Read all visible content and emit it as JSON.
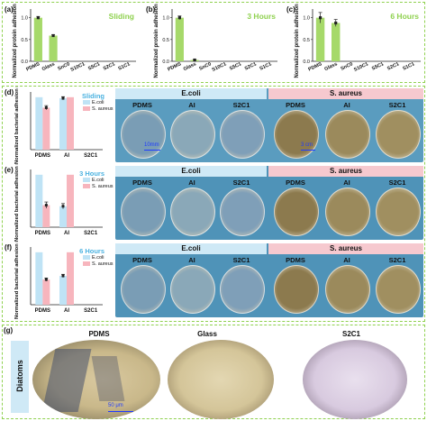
{
  "panels": {
    "a": "(a)",
    "b": "(b)",
    "c": "(c)",
    "d": "(d)",
    "e": "(e)",
    "f": "(f)",
    "g": "(g)"
  },
  "colors": {
    "protein_bar": "#a6d96a",
    "ecoli_bar": "#bfe3f5",
    "saureus_bar": "#f7b5bd",
    "title_green": "#8fd14f",
    "title_blue": "#4bb2e0",
    "ecoli_header": "#cfe9f6",
    "saureus_header": "#f6c9cf"
  },
  "chart_data": [
    {
      "id": "a",
      "type": "bar",
      "title": "Sliding",
      "ylabel": "Normalized protein adhesion rate",
      "categories": [
        "PDMS",
        "Glass",
        "SnC0",
        "S10C1",
        "S5C1",
        "S2C1",
        "S1C1"
      ],
      "values": [
        1.0,
        0.59,
        0.0,
        0.0,
        0.0,
        0.0,
        0.0
      ],
      "errors": [
        0.03,
        0.02,
        0,
        0,
        0,
        0,
        0
      ],
      "ylim": [
        0,
        1.2
      ],
      "yticks": [
        "0.0",
        "0.5",
        "1.0"
      ]
    },
    {
      "id": "b",
      "type": "bar",
      "title": "3 Hours",
      "ylabel": "Normalized protein adhesion rate",
      "categories": [
        "PDMS",
        "Glass",
        "SnC0",
        "S10C1",
        "S5C1",
        "S2C1",
        "S1C1"
      ],
      "values": [
        1.0,
        0.03,
        0.0,
        0.0,
        0.0,
        0.0,
        0.0
      ],
      "errors": [
        0.04,
        0.01,
        0,
        0,
        0,
        0,
        0
      ],
      "ylim": [
        0,
        1.2
      ],
      "yticks": [
        "0.0",
        "0.5",
        "1.0"
      ]
    },
    {
      "id": "c",
      "type": "bar",
      "title": "6 Hours",
      "ylabel": "Normalized protein adhesion rate",
      "categories": [
        "PDMS",
        "Glass",
        "SnC0",
        "S10C1",
        "S5C1",
        "S2C1",
        "S1C1"
      ],
      "values": [
        1.0,
        0.88,
        0.0,
        0.0,
        0.0,
        0.0,
        0.0
      ],
      "errors": [
        0.12,
        0.08,
        0,
        0,
        0,
        0,
        0
      ],
      "ylim": [
        0,
        1.2
      ],
      "yticks": [
        "0.0",
        "0.5",
        "1.0"
      ]
    },
    {
      "id": "d",
      "type": "bar",
      "title": "Sliding",
      "ylabel": "Normalized bacterial adhesion rate",
      "categories": [
        "PDMS",
        "AI",
        "S2C1"
      ],
      "series": [
        {
          "name": "E.coli",
          "values": [
            1.0,
            0.98,
            0.0
          ],
          "errors": [
            0.0,
            0.03,
            0
          ]
        },
        {
          "name": "S. aureus",
          "values": [
            0.8,
            1.0,
            0.0
          ],
          "errors": [
            0.04,
            0.0,
            0
          ]
        }
      ],
      "ylim": [
        0,
        1.1
      ]
    },
    {
      "id": "e",
      "type": "bar",
      "title": "3 Hours",
      "ylabel": "Normalized bacterial adhesion rate",
      "categories": [
        "PDMS",
        "AI",
        "S2C1"
      ],
      "series": [
        {
          "name": "E.coli",
          "values": [
            1.0,
            0.4,
            0.0
          ],
          "errors": [
            0.0,
            0.05,
            0
          ]
        },
        {
          "name": "S. aureus",
          "values": [
            0.42,
            1.0,
            0.0
          ],
          "errors": [
            0.06,
            0.0,
            0
          ]
        }
      ],
      "ylim": [
        0,
        1.1
      ]
    },
    {
      "id": "f",
      "type": "bar",
      "title": "6 Hours",
      "ylabel": "Normalized bacterial adhesion rate",
      "categories": [
        "PDMS",
        "AI",
        "S2C1"
      ],
      "series": [
        {
          "name": "E.coli",
          "values": [
            1.0,
            0.55,
            0.0
          ],
          "errors": [
            0.0,
            0.03,
            0
          ]
        },
        {
          "name": "S. aureus",
          "values": [
            0.48,
            1.0,
            0.0
          ],
          "errors": [
            0.03,
            0.0,
            0
          ]
        }
      ],
      "ylim": [
        0,
        1.1
      ]
    }
  ],
  "photos": {
    "ecoli_header": "E.coli",
    "saureus_header": "S. aureus",
    "dish_labels": [
      "PDMS",
      "AI",
      "S2C1",
      "PDMS",
      "AI",
      "S2C1"
    ],
    "scale_left": "10mm",
    "scale_right": "3 cm"
  },
  "micro": {
    "row_label": "Diatoms",
    "labels": [
      "PDMS",
      "Glass",
      "S2C1"
    ],
    "scale": "50 μm"
  }
}
